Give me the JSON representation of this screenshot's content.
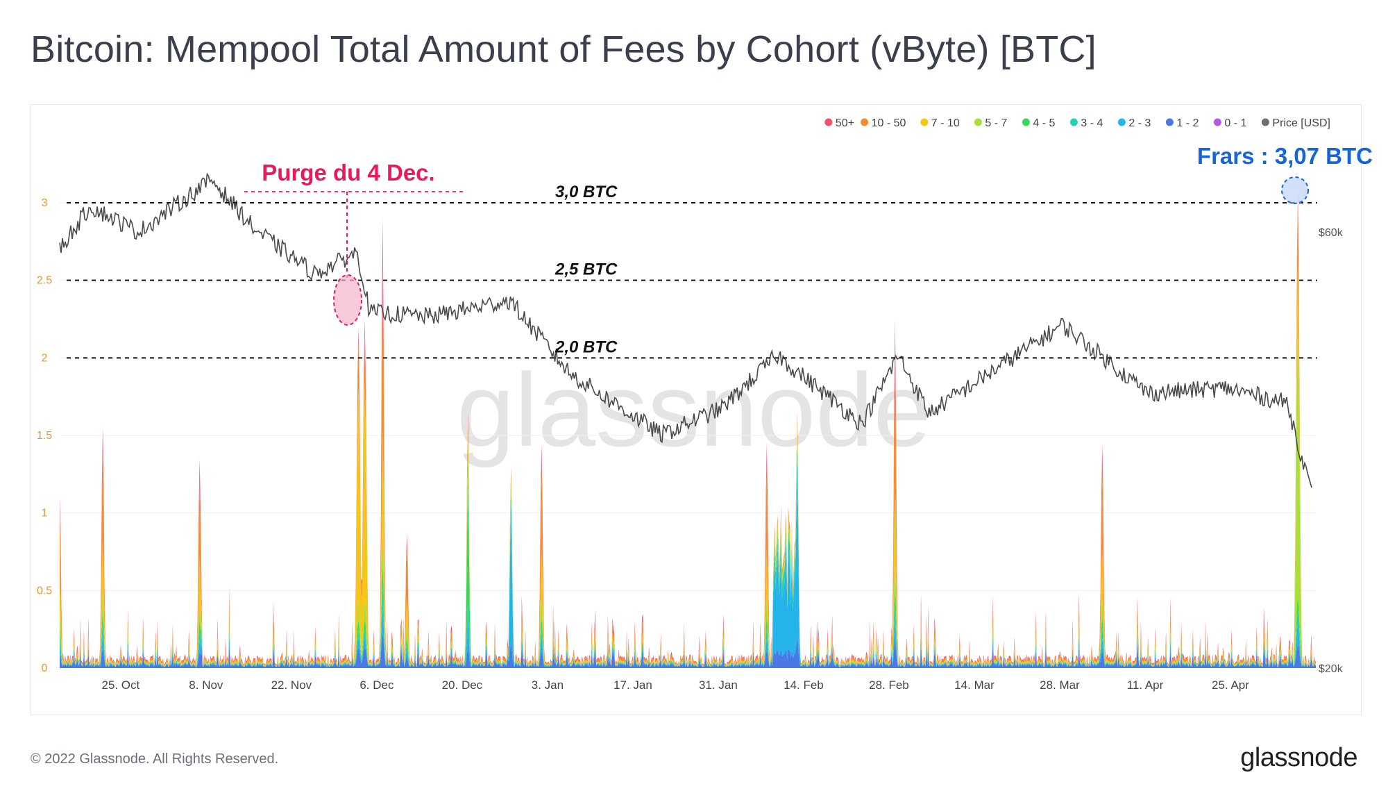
{
  "title": "Bitcoin: Mempool Total Amount of Fees by Cohort (vByte) [BTC]",
  "footer": {
    "copyright": "© 2022 Glassnode. All Rights Reserved.",
    "logo": "glassnode"
  },
  "watermark": "glassnode",
  "chart_data": {
    "type": "area",
    "title": "Bitcoin: Mempool Total Amount of Fees by Cohort (vByte) [BTC]",
    "x_ticks": [
      "25. Oct",
      "8. Nov",
      "22. Nov",
      "6. Dec",
      "20. Dec",
      "3. Jan",
      "17. Jan",
      "31. Jan",
      "14. Feb",
      "28. Feb",
      "14. Mar",
      "28. Mar",
      "11. Apr",
      "25. Apr"
    ],
    "x_range": [
      "2021-10-15",
      "2022-05-09"
    ],
    "y_left": {
      "ticks": [
        "0",
        "0.5",
        "1",
        "1.5",
        "2",
        "2.5",
        "3"
      ],
      "range": [
        0,
        3.0
      ],
      "color": "#e8952f"
    },
    "y_right": {
      "ticks": [
        "$20k",
        "$60k"
      ],
      "scale": "log",
      "label": "Price [USD]"
    },
    "legend": [
      {
        "name": "50+",
        "color": "#f2516b"
      },
      {
        "name": "10 - 50",
        "color": "#f58d2f"
      },
      {
        "name": "7 - 10",
        "color": "#f6c518"
      },
      {
        "name": "5 - 7",
        "color": "#a6e13a"
      },
      {
        "name": "4 - 5",
        "color": "#37d85c"
      },
      {
        "name": "3 - 4",
        "color": "#27cfb4"
      },
      {
        "name": "2 - 3",
        "color": "#24b3ea"
      },
      {
        "name": "1 - 2",
        "color": "#4a78e4"
      },
      {
        "name": "0 - 1",
        "color": "#b05be5"
      },
      {
        "name": "Price [USD]",
        "color": "#6e6e6e"
      }
    ],
    "legend_position": "top-right",
    "reference_lines": [
      {
        "value": 3.0,
        "label": "3,0 BTC"
      },
      {
        "value": 2.5,
        "label": "2,5 BTC"
      },
      {
        "value": 2.0,
        "label": "2,0 BTC"
      }
    ],
    "annotations": [
      {
        "text": "Purge du 4 Dec.",
        "color": "#e8195c",
        "date": "2021-12-04",
        "peak": 2.25
      },
      {
        "text": "Frars : 3,07 BTC",
        "color": "#1565d8",
        "date": "2022-05-07",
        "peak": 3.07
      }
    ],
    "notable_fee_spikes": [
      {
        "date": "2021-10-15",
        "total": 1.1
      },
      {
        "date": "2021-10-22",
        "total": 1.55
      },
      {
        "date": "2021-11-07",
        "total": 1.35
      },
      {
        "date": "2021-12-03",
        "total": 2.2
      },
      {
        "date": "2021-12-04",
        "total": 2.25
      },
      {
        "date": "2021-12-07",
        "total": 2.9
      },
      {
        "date": "2021-12-11",
        "total": 0.87
      },
      {
        "date": "2021-12-21",
        "total": 1.65
      },
      {
        "date": "2021-12-28",
        "total": 1.3
      },
      {
        "date": "2022-01-02",
        "total": 1.45
      },
      {
        "date": "2022-02-08",
        "total": 1.45
      },
      {
        "date": "2022-02-13",
        "total": 1.65
      },
      {
        "date": "2022-03-01",
        "total": 2.25
      },
      {
        "date": "2022-04-04",
        "total": 1.45
      },
      {
        "date": "2022-05-06",
        "total": 3.07
      }
    ],
    "price_approx_usd": [
      {
        "date": "2021-10-15",
        "price": 57500
      },
      {
        "date": "2021-10-20",
        "price": 64000
      },
      {
        "date": "2021-10-28",
        "price": 60000
      },
      {
        "date": "2021-11-09",
        "price": 68500
      },
      {
        "date": "2021-11-16",
        "price": 60500
      },
      {
        "date": "2021-11-26",
        "price": 54000
      },
      {
        "date": "2021-12-03",
        "price": 57000
      },
      {
        "date": "2021-12-05",
        "price": 49000
      },
      {
        "date": "2021-12-15",
        "price": 48500
      },
      {
        "date": "2021-12-28",
        "price": 50500
      },
      {
        "date": "2022-01-07",
        "price": 42000
      },
      {
        "date": "2022-01-22",
        "price": 36000
      },
      {
        "date": "2022-02-01",
        "price": 38500
      },
      {
        "date": "2022-02-10",
        "price": 44000
      },
      {
        "date": "2022-02-24",
        "price": 37000
      },
      {
        "date": "2022-03-02",
        "price": 44000
      },
      {
        "date": "2022-03-07",
        "price": 38000
      },
      {
        "date": "2022-03-29",
        "price": 47500
      },
      {
        "date": "2022-04-12",
        "price": 40000
      },
      {
        "date": "2022-04-25",
        "price": 40500
      },
      {
        "date": "2022-05-05",
        "price": 39000
      },
      {
        "date": "2022-05-09",
        "price": 31000
      }
    ]
  }
}
